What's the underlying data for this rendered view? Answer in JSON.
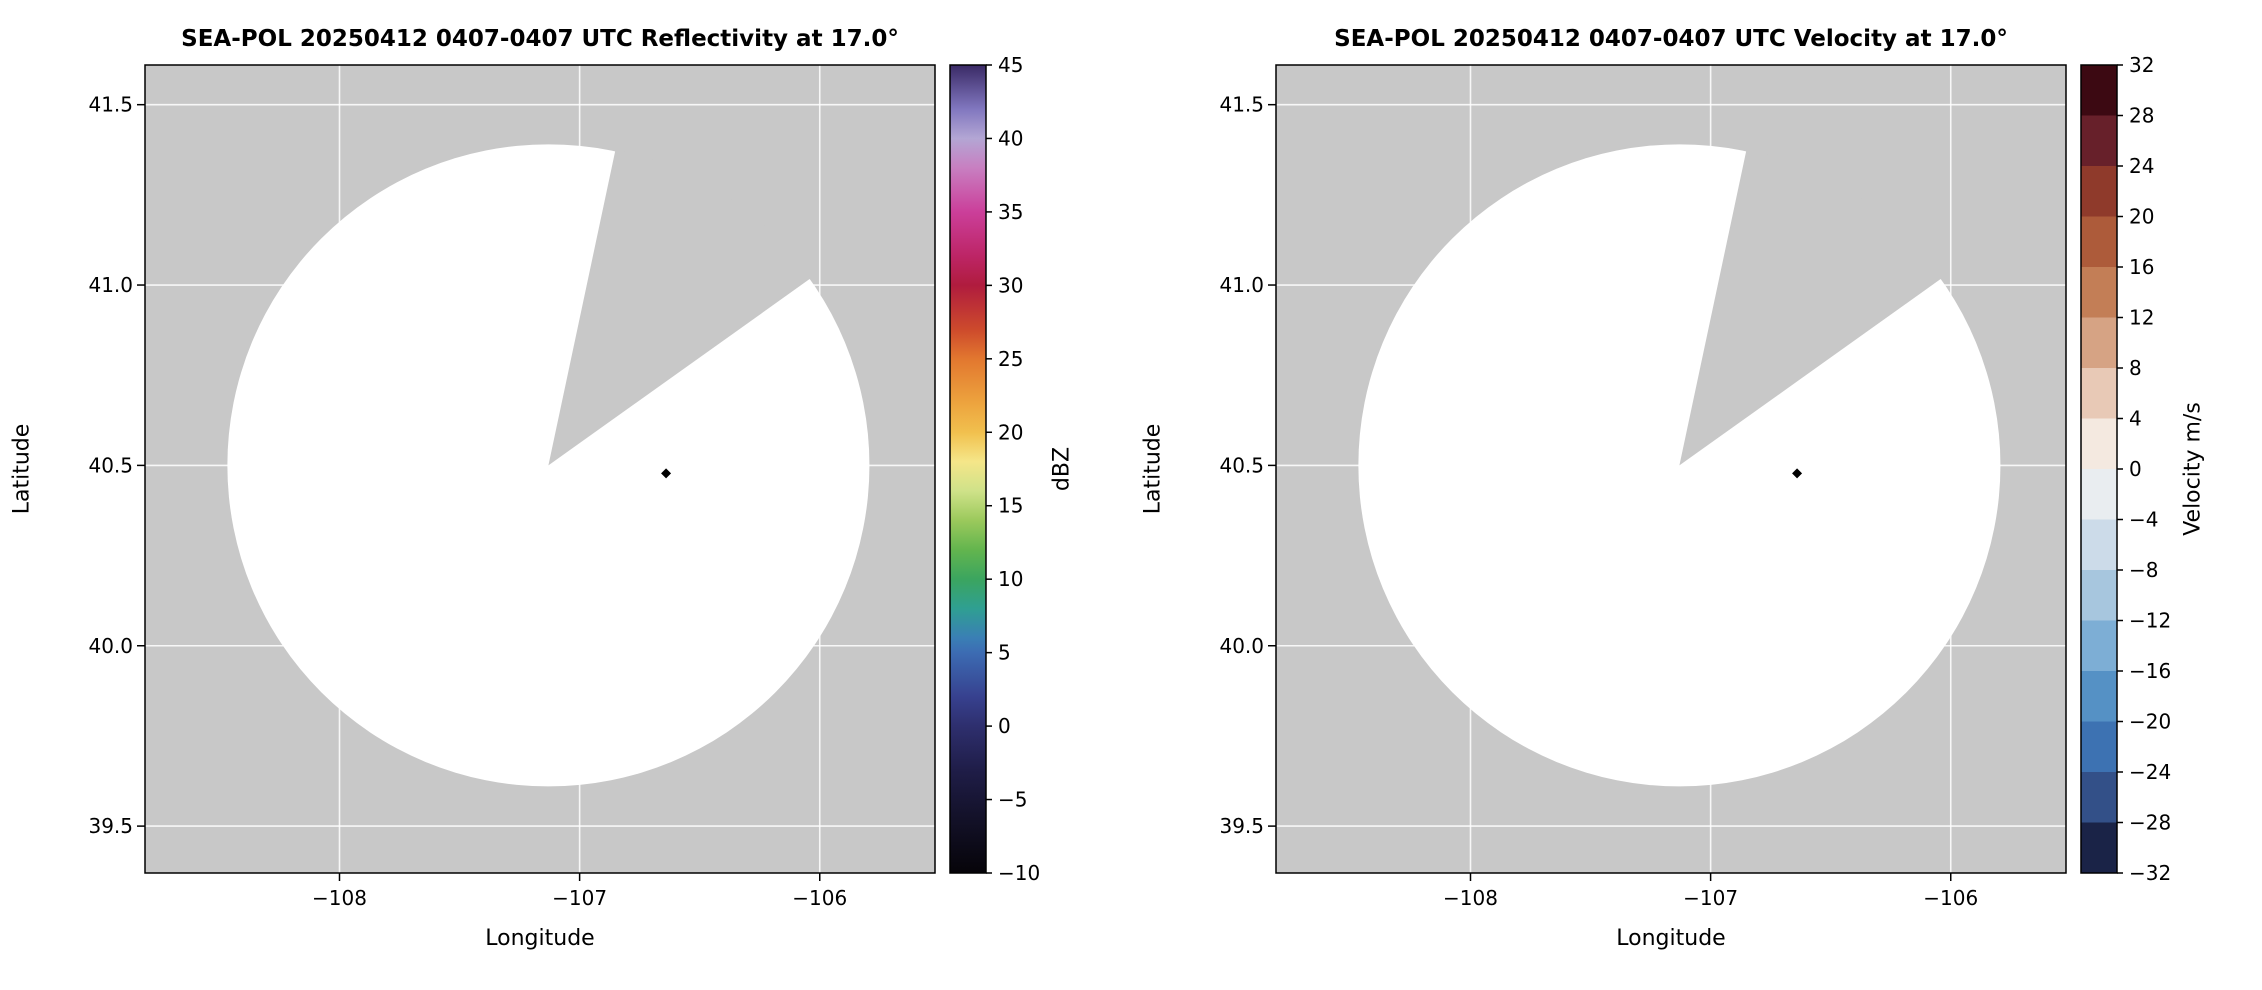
{
  "figure": {
    "background": "#ffffff"
  },
  "chart_data": [
    {
      "type": "radar_ppi",
      "field": "reflectivity",
      "title": "SEA-POL 20250412 0407-0407 UTC Reflectivity at 17.0°",
      "xlabel": "Longitude",
      "ylabel": "Latitude",
      "xlim": [
        -108.81,
        -105.52
      ],
      "ylim": [
        39.37,
        41.61
      ],
      "xticks": [
        {
          "v": -108,
          "label": "−108"
        },
        {
          "v": -107,
          "label": "−107"
        },
        {
          "v": -106,
          "label": "−106"
        }
      ],
      "yticks": [
        {
          "v": 39.5,
          "label": "39.5"
        },
        {
          "v": 40.0,
          "label": "40.0"
        },
        {
          "v": 40.5,
          "label": "40.5"
        },
        {
          "v": 41.0,
          "label": "41.0"
        },
        {
          "v": 41.5,
          "label": "41.5"
        }
      ],
      "background_color": "#c8c8c8",
      "grid": {
        "color": "#ffffff",
        "opacity": 0.85
      },
      "coverage": {
        "center_lon": -107.13,
        "center_lat": 40.5,
        "radius_deg_lat": 0.89,
        "fill": "#ffffff",
        "missing_sector_azimuth_deg": [
          12,
          54.5
        ]
      },
      "marker": {
        "lon": -106.64,
        "lat": 40.478,
        "color": "#000000"
      },
      "colorbar": {
        "label": "dBZ",
        "min": -10,
        "max": 45,
        "kind": "gradient",
        "ticks": [
          {
            "v": 45,
            "label": "45"
          },
          {
            "v": 40,
            "label": "40"
          },
          {
            "v": 35,
            "label": "35"
          },
          {
            "v": 30,
            "label": "30"
          },
          {
            "v": 25,
            "label": "25"
          },
          {
            "v": 20,
            "label": "20"
          },
          {
            "v": 15,
            "label": "15"
          },
          {
            "v": 10,
            "label": "10"
          },
          {
            "v": 5,
            "label": "5"
          },
          {
            "v": 0,
            "label": "0"
          },
          {
            "v": -5,
            "label": "−5"
          },
          {
            "v": -10,
            "label": "−10"
          }
        ],
        "stops": [
          {
            "v": 45,
            "c": "#3a2a66"
          },
          {
            "v": 42,
            "c": "#8177bf"
          },
          {
            "v": 40,
            "c": "#b3a6d4"
          },
          {
            "v": 38,
            "c": "#c87fc1"
          },
          {
            "v": 35,
            "c": "#cb3f9a"
          },
          {
            "v": 32,
            "c": "#bd2566"
          },
          {
            "v": 30,
            "c": "#b01c3e"
          },
          {
            "v": 27,
            "c": "#cd4a2c"
          },
          {
            "v": 25,
            "c": "#e2772f"
          },
          {
            "v": 22,
            "c": "#eda33e"
          },
          {
            "v": 20,
            "c": "#f1c04e"
          },
          {
            "v": 18,
            "c": "#f5e689"
          },
          {
            "v": 16,
            "c": "#cfe289"
          },
          {
            "v": 14,
            "c": "#9bc95c"
          },
          {
            "v": 12,
            "c": "#63b54e"
          },
          {
            "v": 10,
            "c": "#3ba55f"
          },
          {
            "v": 8,
            "c": "#2f9f92"
          },
          {
            "v": 6,
            "c": "#3a7fb5"
          },
          {
            "v": 5,
            "c": "#3c6cb3"
          },
          {
            "v": 2,
            "c": "#37418f"
          },
          {
            "v": 0,
            "c": "#2e2f6e"
          },
          {
            "v": -3,
            "c": "#1f1d48"
          },
          {
            "v": -6,
            "c": "#14122b"
          },
          {
            "v": -10,
            "c": "#060409"
          }
        ]
      }
    },
    {
      "type": "radar_ppi",
      "field": "velocity",
      "title": "SEA-POL 20250412 0407-0407 UTC Velocity at 17.0°",
      "xlabel": "Longitude",
      "ylabel": "Latitude",
      "xlim": [
        -108.81,
        -105.52
      ],
      "ylim": [
        39.37,
        41.61
      ],
      "xticks": [
        {
          "v": -108,
          "label": "−108"
        },
        {
          "v": -107,
          "label": "−107"
        },
        {
          "v": -106,
          "label": "−106"
        }
      ],
      "yticks": [
        {
          "v": 39.5,
          "label": "39.5"
        },
        {
          "v": 40.0,
          "label": "40.0"
        },
        {
          "v": 40.5,
          "label": "40.5"
        },
        {
          "v": 41.0,
          "label": "41.0"
        },
        {
          "v": 41.5,
          "label": "41.5"
        }
      ],
      "background_color": "#c8c8c8",
      "grid": {
        "color": "#ffffff",
        "opacity": 0.85
      },
      "coverage": {
        "center_lon": -107.13,
        "center_lat": 40.5,
        "radius_deg_lat": 0.89,
        "fill": "#ffffff",
        "missing_sector_azimuth_deg": [
          12,
          54.5
        ]
      },
      "marker": {
        "lon": -106.64,
        "lat": 40.478,
        "color": "#000000"
      },
      "colorbar": {
        "label": "Velocity m/s",
        "min": -32,
        "max": 32,
        "kind": "discrete",
        "ticks": [
          {
            "v": 32,
            "label": "32"
          },
          {
            "v": 28,
            "label": "28"
          },
          {
            "v": 24,
            "label": "24"
          },
          {
            "v": 20,
            "label": "20"
          },
          {
            "v": 16,
            "label": "16"
          },
          {
            "v": 12,
            "label": "12"
          },
          {
            "v": 8,
            "label": "8"
          },
          {
            "v": 4,
            "label": "4"
          },
          {
            "v": 0,
            "label": "0"
          },
          {
            "v": -4,
            "label": "−4"
          },
          {
            "v": -8,
            "label": "−8"
          },
          {
            "v": -12,
            "label": "−12"
          },
          {
            "v": -16,
            "label": "−16"
          },
          {
            "v": -20,
            "label": "−20"
          },
          {
            "v": -24,
            "label": "−24"
          },
          {
            "v": -28,
            "label": "−28"
          },
          {
            "v": -32,
            "label": "−32"
          }
        ],
        "segments": [
          {
            "from": 28,
            "to": 32,
            "c": "#3c0912"
          },
          {
            "from": 24,
            "to": 28,
            "c": "#67202a"
          },
          {
            "from": 20,
            "to": 24,
            "c": "#8f3a2b"
          },
          {
            "from": 16,
            "to": 20,
            "c": "#ad5b3a"
          },
          {
            "from": 12,
            "to": 16,
            "c": "#c37e56"
          },
          {
            "from": 8,
            "to": 12,
            "c": "#d6a384"
          },
          {
            "from": 4,
            "to": 8,
            "c": "#e8c9b6"
          },
          {
            "from": 0,
            "to": 4,
            "c": "#f4e9e0"
          },
          {
            "from": -4,
            "to": 0,
            "c": "#e9edf0"
          },
          {
            "from": -8,
            "to": -4,
            "c": "#ccdbe9"
          },
          {
            "from": -12,
            "to": -8,
            "c": "#a7c6de"
          },
          {
            "from": -16,
            "to": -12,
            "c": "#7daed5"
          },
          {
            "from": -20,
            "to": -16,
            "c": "#5591c5"
          },
          {
            "from": -24,
            "to": -20,
            "c": "#3d72b2"
          },
          {
            "from": -28,
            "to": -24,
            "c": "#335088"
          },
          {
            "from": -32,
            "to": -28,
            "c": "#1a2347"
          }
        ]
      }
    }
  ]
}
